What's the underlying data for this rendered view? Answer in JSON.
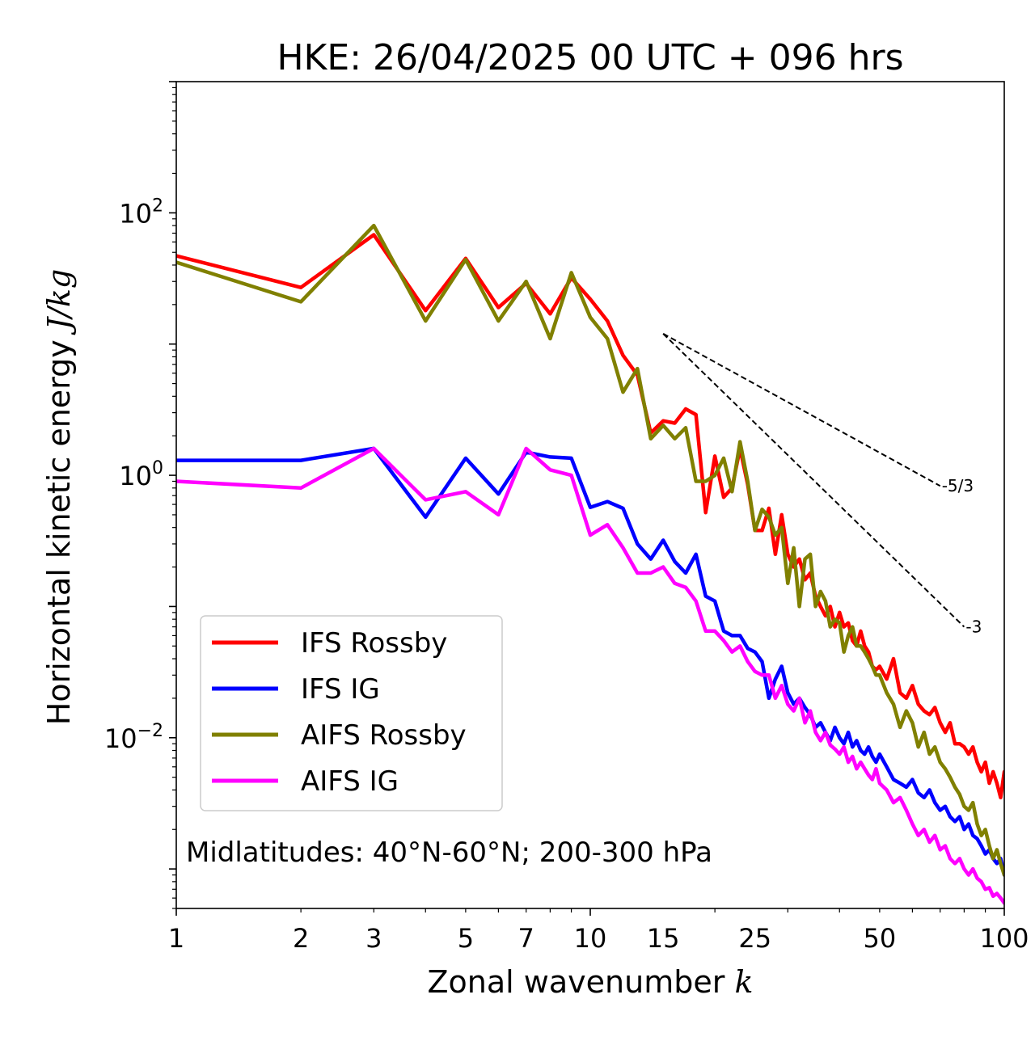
{
  "chart_data": {
    "type": "line",
    "title": "HKE: 26/04/2025 00 UTC + 096 hrs",
    "xlabel": "Zonal wavenumber",
    "xlabel_italic": "k",
    "ylabel": "Horizontal kinetic energy",
    "ylabel_italic": "J/kg",
    "xscale": "log",
    "yscale": "log",
    "xlim": [
      1,
      100
    ],
    "ylim": [
      0.0005,
      1000
    ],
    "x_ticks": [
      1,
      2,
      3,
      5,
      7,
      10,
      15,
      25,
      50,
      100
    ],
    "x_tick_labels": [
      "1",
      "2",
      "3",
      "5",
      "7",
      "10",
      "15",
      "25",
      "50",
      "100"
    ],
    "y_ticks": [
      0.01,
      1,
      100
    ],
    "y_tick_labels": [
      {
        "base": "10",
        "exp": "−2"
      },
      {
        "base": "10",
        "exp": "0"
      },
      {
        "base": "10",
        "exp": "2"
      }
    ],
    "grid": false,
    "legend_position": "lower-left",
    "annotation": "Midlatitudes: 40°N-60°N; 200-300 hPa",
    "reference_lines": [
      {
        "label": "-5/3",
        "x": [
          15,
          70
        ],
        "y": [
          12,
          0.83
        ],
        "style": "dashed",
        "color": "#000000"
      },
      {
        "label": "-3",
        "x": [
          15,
          80
        ],
        "y": [
          12,
          0.07
        ],
        "style": "dashed",
        "color": "#000000"
      }
    ],
    "series": [
      {
        "name": "IFS Rossby",
        "color": "#ff0000",
        "points": [
          [
            1,
            47
          ],
          [
            2,
            27
          ],
          [
            3,
            68
          ],
          [
            4,
            18
          ],
          [
            5,
            45
          ],
          [
            6,
            19
          ],
          [
            7,
            29
          ],
          [
            8,
            17
          ],
          [
            9,
            32
          ],
          [
            10,
            22
          ],
          [
            11,
            15
          ],
          [
            12,
            8.2
          ],
          [
            13,
            5.8
          ],
          [
            14,
            2.1
          ],
          [
            15,
            2.6
          ],
          [
            16,
            2.5
          ],
          [
            17,
            3.2
          ],
          [
            18,
            2.9
          ],
          [
            19,
            0.52
          ],
          [
            20,
            1.4
          ],
          [
            21,
            0.68
          ],
          [
            22,
            0.8
          ],
          [
            23,
            1.6
          ],
          [
            24,
            0.85
          ],
          [
            25,
            0.38
          ],
          [
            26,
            0.38
          ],
          [
            27,
            0.56
          ],
          [
            28,
            0.25
          ],
          [
            29,
            0.5
          ],
          [
            30,
            0.25
          ],
          [
            31,
            0.2
          ],
          [
            32,
            0.23
          ],
          [
            33,
            0.16
          ],
          [
            34,
            0.18
          ],
          [
            35,
            0.12
          ],
          [
            36,
            0.1
          ],
          [
            37,
            0.085
          ],
          [
            38,
            0.1
          ],
          [
            39,
            0.07
          ],
          [
            40,
            0.09
          ],
          [
            41,
            0.07
          ],
          [
            42,
            0.075
          ],
          [
            43,
            0.055
          ],
          [
            44,
            0.05
          ],
          [
            45,
            0.065
          ],
          [
            46,
            0.05
          ],
          [
            47,
            0.045
          ],
          [
            48,
            0.035
          ],
          [
            49,
            0.033
          ],
          [
            50,
            0.035
          ],
          [
            52,
            0.028
          ],
          [
            54,
            0.04
          ],
          [
            56,
            0.022
          ],
          [
            58,
            0.02
          ],
          [
            60,
            0.025
          ],
          [
            62,
            0.018
          ],
          [
            64,
            0.016
          ],
          [
            66,
            0.015
          ],
          [
            68,
            0.017
          ],
          [
            70,
            0.013
          ],
          [
            72,
            0.011
          ],
          [
            74,
            0.013
          ],
          [
            76,
            0.009
          ],
          [
            78,
            0.009
          ],
          [
            80,
            0.0085
          ],
          [
            82,
            0.0075
          ],
          [
            84,
            0.0085
          ],
          [
            86,
            0.0065
          ],
          [
            88,
            0.0055
          ],
          [
            90,
            0.0065
          ],
          [
            92,
            0.0045
          ],
          [
            94,
            0.0055
          ],
          [
            96,
            0.0045
          ],
          [
            98,
            0.0035
          ],
          [
            100,
            0.0055
          ]
        ]
      },
      {
        "name": "IFS IG",
        "color": "#0000ff",
        "points": [
          [
            1,
            1.3
          ],
          [
            2,
            1.3
          ],
          [
            3,
            1.6
          ],
          [
            4,
            0.48
          ],
          [
            5,
            1.35
          ],
          [
            6,
            0.72
          ],
          [
            7,
            1.5
          ],
          [
            8,
            1.38
          ],
          [
            9,
            1.35
          ],
          [
            10,
            0.57
          ],
          [
            11,
            0.63
          ],
          [
            12,
            0.56
          ],
          [
            13,
            0.3
          ],
          [
            14,
            0.23
          ],
          [
            15,
            0.32
          ],
          [
            16,
            0.22
          ],
          [
            17,
            0.18
          ],
          [
            18,
            0.25
          ],
          [
            19,
            0.12
          ],
          [
            20,
            0.11
          ],
          [
            21,
            0.065
          ],
          [
            22,
            0.06
          ],
          [
            23,
            0.06
          ],
          [
            24,
            0.048
          ],
          [
            25,
            0.045
          ],
          [
            26,
            0.038
          ],
          [
            27,
            0.02
          ],
          [
            28,
            0.028
          ],
          [
            29,
            0.035
          ],
          [
            30,
            0.022
          ],
          [
            31,
            0.018
          ],
          [
            32,
            0.02
          ],
          [
            33,
            0.017
          ],
          [
            34,
            0.015
          ],
          [
            35,
            0.012
          ],
          [
            36,
            0.013
          ],
          [
            37,
            0.011
          ],
          [
            38,
            0.0095
          ],
          [
            39,
            0.012
          ],
          [
            40,
            0.01
          ],
          [
            41,
            0.009
          ],
          [
            42,
            0.011
          ],
          [
            43,
            0.0085
          ],
          [
            44,
            0.0095
          ],
          [
            45,
            0.008
          ],
          [
            46,
            0.0075
          ],
          [
            47,
            0.0085
          ],
          [
            48,
            0.0072
          ],
          [
            49,
            0.0065
          ],
          [
            50,
            0.0075
          ],
          [
            52,
            0.006
          ],
          [
            54,
            0.0048
          ],
          [
            56,
            0.0045
          ],
          [
            58,
            0.0042
          ],
          [
            60,
            0.0048
          ],
          [
            62,
            0.0038
          ],
          [
            64,
            0.0035
          ],
          [
            66,
            0.004
          ],
          [
            68,
            0.0032
          ],
          [
            70,
            0.0028
          ],
          [
            72,
            0.003
          ],
          [
            74,
            0.0025
          ],
          [
            76,
            0.0023
          ],
          [
            78,
            0.0025
          ],
          [
            80,
            0.002
          ],
          [
            82,
            0.0022
          ],
          [
            84,
            0.0018
          ],
          [
            86,
            0.0017
          ],
          [
            88,
            0.0015
          ],
          [
            90,
            0.0013
          ],
          [
            92,
            0.0014
          ],
          [
            94,
            0.0012
          ],
          [
            96,
            0.0011
          ],
          [
            98,
            0.0012
          ],
          [
            100,
            0.0009
          ]
        ]
      },
      {
        "name": "AIFS Rossby",
        "color": "#808000",
        "points": [
          [
            1,
            42
          ],
          [
            2,
            21
          ],
          [
            3,
            80
          ],
          [
            4,
            15
          ],
          [
            5,
            44
          ],
          [
            6,
            15
          ],
          [
            7,
            30
          ],
          [
            8,
            11
          ],
          [
            9,
            35
          ],
          [
            10,
            16
          ],
          [
            11,
            11
          ],
          [
            12,
            4.3
          ],
          [
            13,
            6.5
          ],
          [
            14,
            1.9
          ],
          [
            15,
            2.4
          ],
          [
            16,
            1.9
          ],
          [
            17,
            2.3
          ],
          [
            18,
            0.9
          ],
          [
            19,
            0.9
          ],
          [
            20,
            1.0
          ],
          [
            21,
            1.35
          ],
          [
            22,
            0.75
          ],
          [
            23,
            1.8
          ],
          [
            24,
            0.9
          ],
          [
            25,
            0.38
          ],
          [
            26,
            0.55
          ],
          [
            27,
            0.48
          ],
          [
            28,
            0.35
          ],
          [
            29,
            0.4
          ],
          [
            30,
            0.15
          ],
          [
            31,
            0.28
          ],
          [
            32,
            0.1
          ],
          [
            33,
            0.23
          ],
          [
            34,
            0.25
          ],
          [
            35,
            0.1
          ],
          [
            36,
            0.13
          ],
          [
            37,
            0.11
          ],
          [
            38,
            0.07
          ],
          [
            39,
            0.08
          ],
          [
            40,
            0.075
          ],
          [
            41,
            0.045
          ],
          [
            42,
            0.06
          ],
          [
            43,
            0.07
          ],
          [
            44,
            0.05
          ],
          [
            45,
            0.05
          ],
          [
            46,
            0.045
          ],
          [
            47,
            0.04
          ],
          [
            48,
            0.035
          ],
          [
            49,
            0.03
          ],
          [
            50,
            0.03
          ],
          [
            52,
            0.022
          ],
          [
            54,
            0.018
          ],
          [
            56,
            0.012
          ],
          [
            58,
            0.016
          ],
          [
            60,
            0.013
          ],
          [
            62,
            0.0085
          ],
          [
            64,
            0.011
          ],
          [
            66,
            0.0075
          ],
          [
            68,
            0.0085
          ],
          [
            70,
            0.0065
          ],
          [
            72,
            0.0058
          ],
          [
            74,
            0.005
          ],
          [
            76,
            0.0042
          ],
          [
            78,
            0.0037
          ],
          [
            80,
            0.003
          ],
          [
            82,
            0.0028
          ],
          [
            84,
            0.0032
          ],
          [
            86,
            0.0022
          ],
          [
            88,
            0.0018
          ],
          [
            90,
            0.002
          ],
          [
            92,
            0.0015
          ],
          [
            94,
            0.0012
          ],
          [
            96,
            0.0014
          ],
          [
            98,
            0.0011
          ],
          [
            100,
            0.0009
          ]
        ]
      },
      {
        "name": "AIFS IG",
        "color": "#ff00ff",
        "points": [
          [
            1,
            0.9
          ],
          [
            2,
            0.8
          ],
          [
            3,
            1.6
          ],
          [
            4,
            0.65
          ],
          [
            5,
            0.75
          ],
          [
            6,
            0.5
          ],
          [
            7,
            1.6
          ],
          [
            8,
            1.1
          ],
          [
            9,
            1.0
          ],
          [
            10,
            0.35
          ],
          [
            11,
            0.42
          ],
          [
            12,
            0.28
          ],
          [
            13,
            0.18
          ],
          [
            14,
            0.18
          ],
          [
            15,
            0.2
          ],
          [
            16,
            0.15
          ],
          [
            17,
            0.14
          ],
          [
            18,
            0.11
          ],
          [
            19,
            0.065
          ],
          [
            20,
            0.065
          ],
          [
            21,
            0.055
          ],
          [
            22,
            0.045
          ],
          [
            23,
            0.05
          ],
          [
            24,
            0.038
          ],
          [
            25,
            0.032
          ],
          [
            26,
            0.03
          ],
          [
            27,
            0.03
          ],
          [
            28,
            0.02
          ],
          [
            29,
            0.025
          ],
          [
            30,
            0.018
          ],
          [
            31,
            0.016
          ],
          [
            32,
            0.02
          ],
          [
            33,
            0.013
          ],
          [
            34,
            0.016
          ],
          [
            35,
            0.011
          ],
          [
            36,
            0.0095
          ],
          [
            37,
            0.011
          ],
          [
            38,
            0.0088
          ],
          [
            39,
            0.0082
          ],
          [
            40,
            0.0075
          ],
          [
            41,
            0.0085
          ],
          [
            42,
            0.0065
          ],
          [
            43,
            0.0072
          ],
          [
            44,
            0.0058
          ],
          [
            45,
            0.0065
          ],
          [
            46,
            0.0058
          ],
          [
            47,
            0.0052
          ],
          [
            48,
            0.0048
          ],
          [
            49,
            0.0058
          ],
          [
            50,
            0.0045
          ],
          [
            52,
            0.004
          ],
          [
            54,
            0.0032
          ],
          [
            56,
            0.0035
          ],
          [
            58,
            0.0028
          ],
          [
            60,
            0.0022
          ],
          [
            62,
            0.0018
          ],
          [
            64,
            0.002
          ],
          [
            66,
            0.0016
          ],
          [
            68,
            0.0018
          ],
          [
            70,
            0.0014
          ],
          [
            72,
            0.0015
          ],
          [
            74,
            0.0012
          ],
          [
            76,
            0.0011
          ],
          [
            78,
            0.0012
          ],
          [
            80,
            0.001
          ],
          [
            82,
            0.0009
          ],
          [
            84,
            0.001
          ],
          [
            86,
            0.00085
          ],
          [
            88,
            0.0008
          ],
          [
            90,
            0.0007
          ],
          [
            92,
            0.00072
          ],
          [
            94,
            0.00062
          ],
          [
            96,
            0.00065
          ],
          [
            98,
            0.0006
          ],
          [
            100,
            0.00055
          ]
        ]
      }
    ]
  }
}
